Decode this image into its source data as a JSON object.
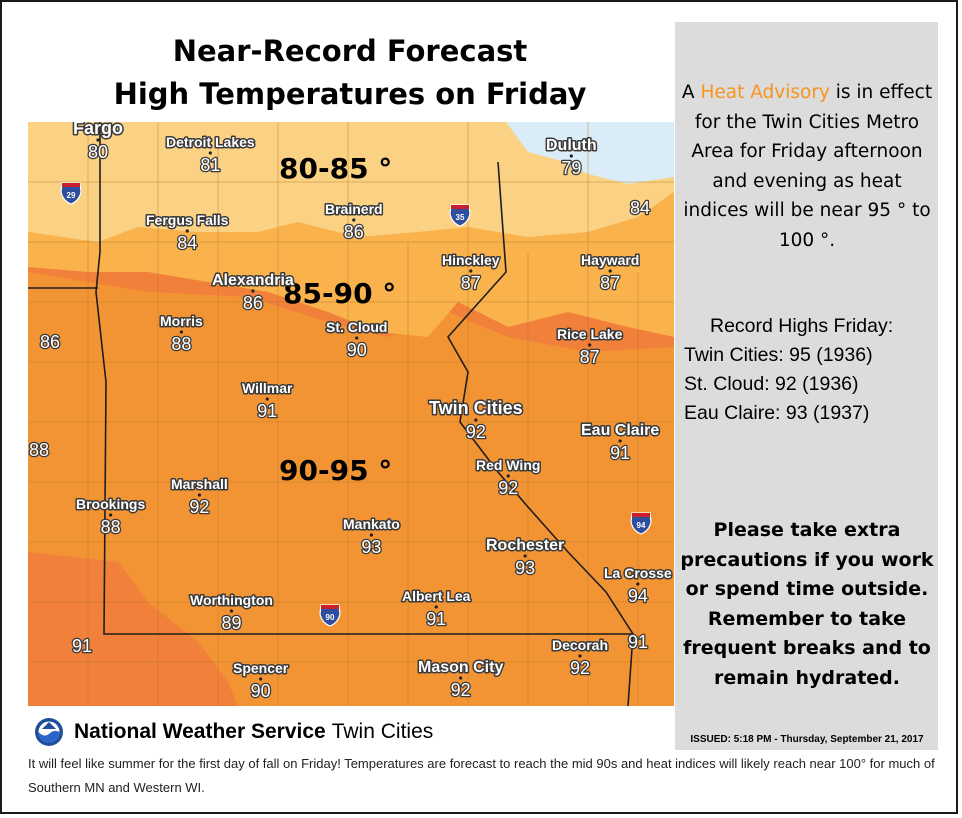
{
  "title": {
    "line1": "Near-Record Forecast",
    "line2": "High Temperatures on Friday"
  },
  "map": {
    "zones": [
      {
        "label": "80-85 °",
        "color": "#fbd184"
      },
      {
        "label": "85-90 °",
        "color": "#f9b24c"
      },
      {
        "label": "90-95 °",
        "color": "#f39434"
      },
      {
        "label": "",
        "color": "#f1803a"
      }
    ],
    "lake_color": "#d9ecf7",
    "cities": [
      {
        "name": "Fargo",
        "temp": "80"
      },
      {
        "name": "Detroit Lakes",
        "temp": "81"
      },
      {
        "name": "Duluth",
        "temp": "79"
      },
      {
        "name": "Brainerd",
        "temp": "86"
      },
      {
        "name": "Fergus Falls",
        "temp": "84"
      },
      {
        "name": "Hinckley",
        "temp": "87"
      },
      {
        "name": "Hayward",
        "temp": "87"
      },
      {
        "name": "Alexandria",
        "temp": "86"
      },
      {
        "name": "Morris",
        "temp": "88"
      },
      {
        "name": "St. Cloud",
        "temp": "90"
      },
      {
        "name": "Rice Lake",
        "temp": "87"
      },
      {
        "name": "Willmar",
        "temp": "91"
      },
      {
        "name": "Twin Cities",
        "temp": "92"
      },
      {
        "name": "Eau Claire",
        "temp": "91"
      },
      {
        "name": "Red Wing",
        "temp": "92"
      },
      {
        "name": "Marshall",
        "temp": "92"
      },
      {
        "name": "Brookings",
        "temp": "88"
      },
      {
        "name": "Mankato",
        "temp": "93"
      },
      {
        "name": "Rochester",
        "temp": "93"
      },
      {
        "name": "La Crosse",
        "temp": "94"
      },
      {
        "name": "Worthington",
        "temp": "89"
      },
      {
        "name": "Albert Lea",
        "temp": "91"
      },
      {
        "name": "Decorah",
        "temp": "92"
      },
      {
        "name": "Spencer",
        "temp": "90"
      },
      {
        "name": "Mason City",
        "temp": "92"
      }
    ],
    "extra_temps": [
      "84",
      "86",
      "88",
      "91",
      "91"
    ],
    "highways": [
      {
        "number": "29",
        "icon": "interstate-shield-icon"
      },
      {
        "number": "35",
        "icon": "interstate-shield-icon"
      },
      {
        "number": "94",
        "icon": "interstate-shield-icon"
      },
      {
        "number": "90",
        "icon": "interstate-shield-icon"
      }
    ]
  },
  "side": {
    "advisory": {
      "pre": "A ",
      "highlight": "Heat Advisory",
      "post": " is in effect for the Twin Cities Metro Area for Friday afternoon and evening as heat indices will be near 95 ° to 100 °.",
      "highlight_color": "#f7941d"
    },
    "records": {
      "title": "Record Highs Friday:",
      "items": [
        "Twin Cities:  95 (1936)",
        "St. Cloud:  92 (1936)",
        "Eau Claire:  93 (1937)"
      ]
    },
    "precautions": [
      "Please take extra",
      "precautions if you work",
      "or spend time outside.",
      "Remember to take",
      "frequent breaks and to",
      "remain hydrated."
    ],
    "issued": "ISSUED: 5:18 PM - Thursday, September 21, 2017"
  },
  "footer": {
    "logo_icon": "noaa-logo-icon",
    "org_bold": "National Weather Service",
    "org_regular": "Twin Cities",
    "caption": "It will feel like summer for the first day of fall on Friday! Temperatures are forecast to reach the mid 90s and heat indices will likely reach near 100° for much of Southern MN and Western WI."
  }
}
